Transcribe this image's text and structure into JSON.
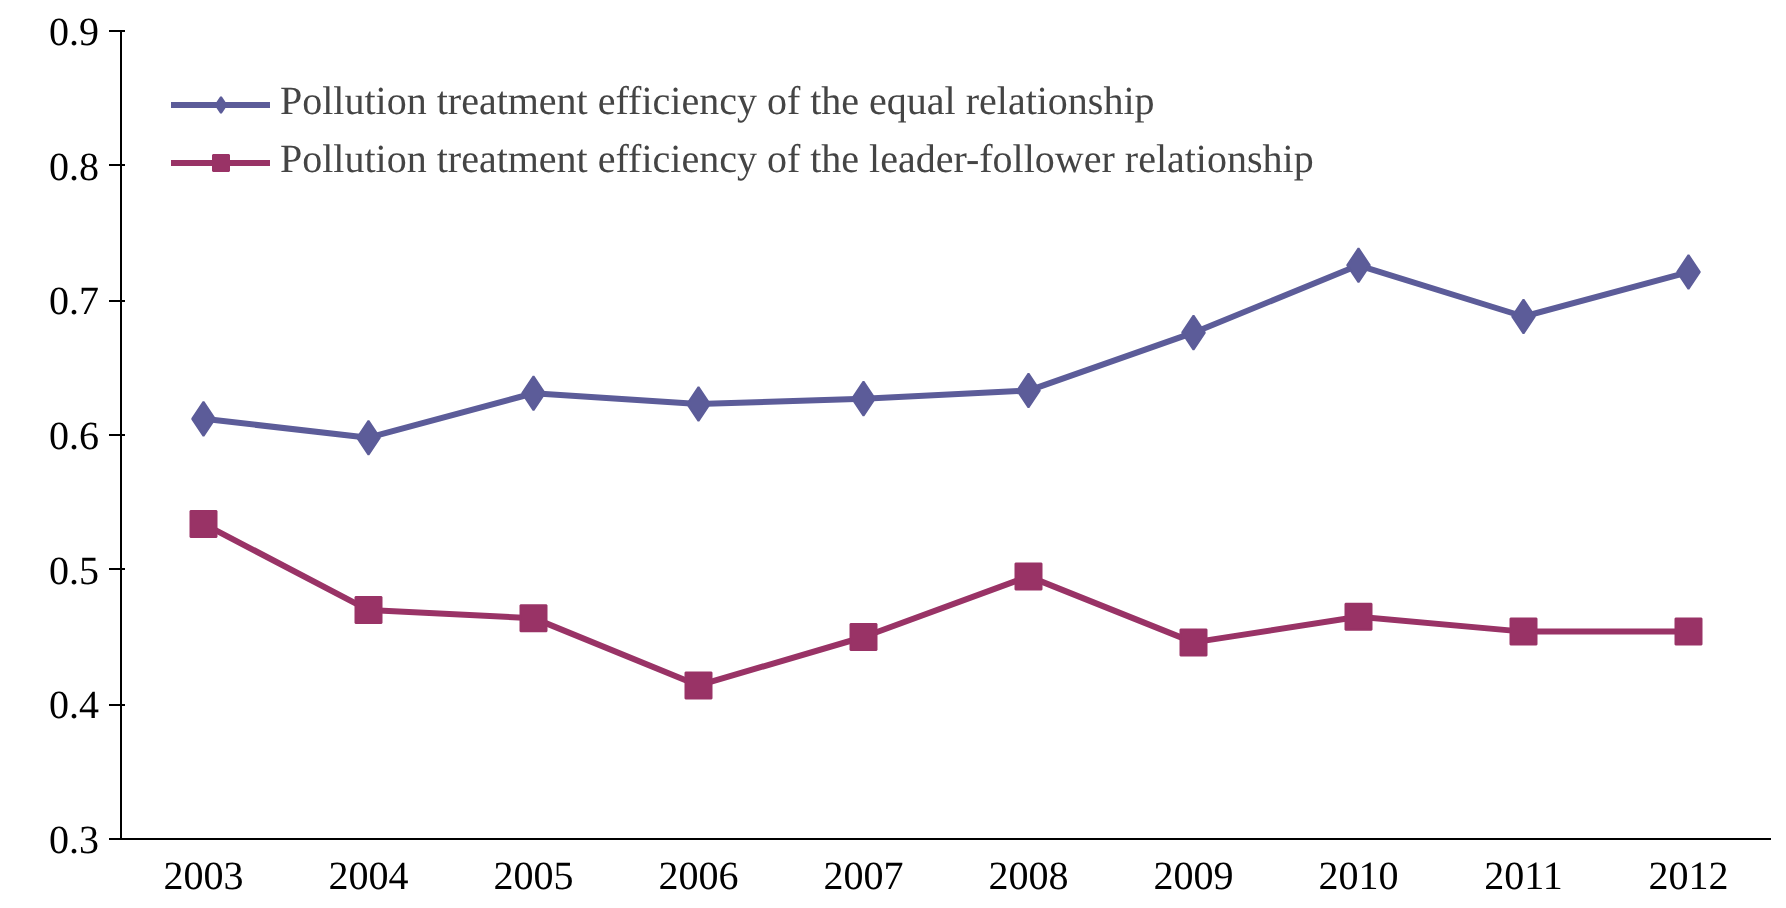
{
  "chart_data": {
    "type": "line",
    "categories": [
      "2003",
      "2004",
      "2005",
      "2006",
      "2007",
      "2008",
      "2009",
      "2010",
      "2011",
      "2012"
    ],
    "series": [
      {
        "name": "Pollution treatment efficiency of the equal relationship",
        "color": "#5c5c99",
        "marker": "diamond",
        "values": [
          0.612,
          0.598,
          0.631,
          0.623,
          0.627,
          0.633,
          0.676,
          0.726,
          0.688,
          0.721
        ]
      },
      {
        "name": "Pollution treatment efficiency of the leader-follower relationship",
        "color": "#993366",
        "marker": "square",
        "values": [
          0.534,
          0.47,
          0.464,
          0.414,
          0.45,
          0.495,
          0.446,
          0.465,
          0.454,
          0.454
        ]
      }
    ],
    "ylim": [
      0.3,
      0.9
    ],
    "yticks": [
      0.3,
      0.4,
      0.5,
      0.6,
      0.7,
      0.8,
      0.9
    ],
    "grid": false,
    "legend": "top left",
    "line_style": "solid"
  }
}
